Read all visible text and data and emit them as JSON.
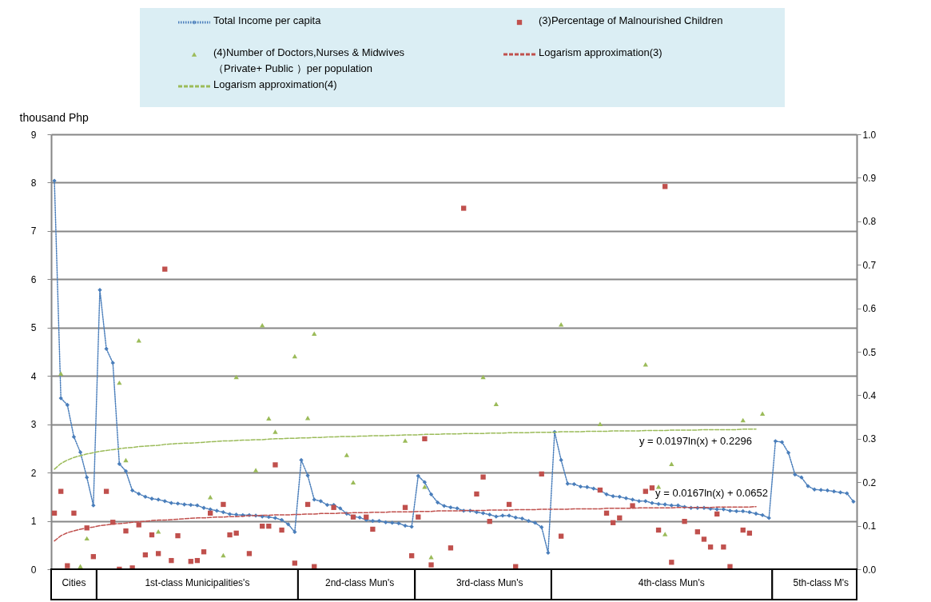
{
  "chart_data": {
    "type": "line",
    "ylabel": "thousand Php",
    "categories": [
      null,
      null,
      null,
      "Cities",
      null,
      null,
      null,
      null,
      null,
      null,
      null,
      null,
      null,
      null,
      null,
      null,
      null,
      null,
      null,
      null,
      null,
      null,
      "1st-class Municipalities's",
      null,
      null,
      null,
      null,
      null,
      null,
      null,
      null,
      null,
      null,
      null,
      null,
      null,
      null,
      null,
      null,
      null,
      null,
      null,
      null,
      null,
      null,
      null,
      null,
      "2nd-class Mun's",
      null,
      null,
      null,
      null,
      null,
      null,
      null,
      null,
      null,
      null,
      null,
      null,
      null,
      null,
      null,
      null,
      null,
      null,
      null,
      "3rd-class Mun's",
      null,
      null,
      null,
      null,
      null,
      null,
      null,
      null,
      null,
      null,
      null,
      null,
      null,
      null,
      null,
      null,
      null,
      null,
      null,
      null,
      null,
      null,
      null,
      null,
      null,
      null,
      null,
      "4th-class Mun's",
      null,
      null,
      null,
      null,
      null,
      null,
      null,
      null,
      null,
      null,
      null,
      null,
      null,
      null,
      null,
      null,
      null,
      null,
      null,
      null,
      null,
      null,
      "5th-class M's",
      null,
      null,
      null,
      null,
      null
    ],
    "ylim": [
      0,
      9
    ],
    "yticks": [
      0,
      1,
      2,
      3,
      4,
      5,
      6,
      7,
      8,
      9
    ],
    "y2lim": [
      0,
      1
    ],
    "y2ticks": [
      {
        "value": 0,
        "label": "0.0"
      },
      0.1,
      0.2,
      0.3,
      0.4,
      0.5,
      0.6,
      0.7,
      0.8,
      0.9,
      {
        "value": 1,
        "label": "1.0"
      }
    ],
    "grid": "y",
    "legend": "top",
    "series": [
      {
        "name": "Total Income  per capita",
        "color": "#4a7ebb",
        "marker": "diamond",
        "line_style": "dotted",
        "axis": "y",
        "values": [
          8.04,
          3.54,
          3.4,
          2.74,
          2.42,
          1.9,
          1.32,
          5.78,
          4.56,
          4.27,
          2.18,
          2.03,
          1.63,
          1.56,
          1.5,
          1.46,
          1.44,
          1.41,
          1.37,
          1.36,
          1.34,
          1.33,
          1.32,
          1.27,
          1.24,
          1.21,
          1.18,
          1.14,
          1.13,
          1.12,
          1.12,
          1.11,
          1.09,
          1.08,
          1.06,
          1.02,
          0.93,
          0.77,
          2.26,
          1.94,
          1.44,
          1.41,
          1.33,
          1.33,
          1.26,
          1.15,
          1.09,
          1.07,
          1.02,
          1.0,
          1.0,
          0.97,
          0.96,
          0.95,
          0.9,
          0.88,
          1.93,
          1.8,
          1.55,
          1.38,
          1.31,
          1.28,
          1.26,
          1.21,
          1.21,
          1.18,
          1.16,
          1.13,
          1.09,
          1.11,
          1.11,
          1.07,
          1.05,
          1.0,
          0.96,
          0.87,
          0.34,
          2.84,
          2.26,
          1.77,
          1.76,
          1.71,
          1.7,
          1.67,
          1.63,
          1.55,
          1.51,
          1.5,
          1.47,
          1.44,
          1.41,
          1.41,
          1.37,
          1.35,
          1.34,
          1.32,
          1.32,
          1.29,
          1.27,
          1.27,
          1.27,
          1.25,
          1.24,
          1.24,
          1.21,
          1.2,
          1.2,
          1.18,
          1.15,
          1.12,
          1.06,
          2.65,
          2.63,
          2.41,
          1.96,
          1.9,
          1.72,
          1.65,
          1.64,
          1.63,
          1.61,
          1.59,
          1.57,
          1.4
        ]
      },
      {
        "name": "(3)Percentage of Malnourished Children",
        "type": "scatter",
        "color": "#c0504d",
        "marker": "square",
        "axis": "y2",
        "values": [
          0.129,
          0.179,
          0.008,
          0.129,
          null,
          0.095,
          0.029,
          null,
          0.179,
          0.108,
          0.0,
          0.088,
          0.003,
          0.102,
          0.033,
          0.079,
          0.036,
          0.69,
          0.02,
          0.077,
          null,
          0.018,
          0.02,
          0.04,
          0.129,
          null,
          0.149,
          0.079,
          0.083,
          null,
          0.036,
          null,
          0.099,
          0.099,
          0.24,
          0.09,
          null,
          0.014,
          null,
          0.149,
          0.006,
          null,
          null,
          0.142,
          null,
          null,
          0.12,
          null,
          0.12,
          0.092,
          null,
          null,
          null,
          null,
          0.142,
          0.031,
          0.12,
          0.3,
          0.01,
          null,
          null,
          0.049,
          null,
          0.83,
          null,
          0.173,
          0.212,
          0.11,
          null,
          null,
          0.149,
          0.006,
          null,
          null,
          null,
          0.219,
          null,
          null,
          0.076,
          null,
          null,
          null,
          null,
          null,
          0.182,
          0.129,
          0.107,
          0.118,
          null,
          0.146,
          null,
          0.179,
          0.187,
          0.09,
          0.88,
          0.016,
          null,
          0.11,
          null,
          0.086,
          0.069,
          0.051,
          0.127,
          0.051,
          0.006,
          null,
          0.09,
          0.083,
          null,
          null,
          null,
          null,
          null,
          null,
          null,
          null,
          null,
          null,
          null,
          null,
          null,
          null,
          null,
          null
        ]
      },
      {
        "name": "(4)Number of Doctors,Nurses & Midwives\n（Private+ Public ）per population",
        "type": "scatter",
        "color": "#9bbb59",
        "marker": "triangle",
        "axis": "y2",
        "values": [
          null,
          0.45,
          null,
          null,
          0.007,
          0.071,
          null,
          null,
          null,
          null,
          0.429,
          0.251,
          null,
          0.526,
          null,
          null,
          0.087,
          null,
          null,
          null,
          null,
          null,
          null,
          null,
          0.166,
          null,
          0.032,
          null,
          0.442,
          null,
          null,
          0.228,
          0.561,
          0.347,
          0.316,
          null,
          null,
          0.49,
          null,
          0.348,
          0.542,
          null,
          null,
          null,
          null,
          0.263,
          0.2,
          null,
          null,
          null,
          null,
          null,
          null,
          null,
          0.296,
          null,
          null,
          0.19,
          0.028,
          null,
          null,
          null,
          null,
          null,
          null,
          null,
          0.442,
          null,
          0.38,
          null,
          null,
          null,
          null,
          null,
          null,
          null,
          null,
          null,
          0.563,
          null,
          null,
          null,
          null,
          null,
          0.334,
          null,
          null,
          null,
          null,
          null,
          null,
          0.471,
          null,
          0.19,
          0.081,
          0.242,
          null,
          null,
          null,
          null,
          null,
          null,
          null,
          null,
          null,
          null,
          0.343,
          null,
          null,
          0.358,
          null,
          null,
          null,
          null,
          null,
          null,
          null,
          null,
          null,
          null,
          null,
          null,
          null,
          null
        ]
      },
      {
        "name": "Logarism approximation(3)",
        "type": "line",
        "color": "#c0504d",
        "line_style": "dashed",
        "axis": "y2",
        "values": [
          0.065,
          0.077,
          0.084,
          0.088,
          0.092,
          0.095,
          0.097,
          0.1,
          0.102,
          0.104,
          0.105,
          0.106,
          0.108,
          0.109,
          0.11,
          0.112,
          0.113,
          0.113,
          0.114,
          0.115,
          0.116,
          0.117,
          0.118,
          0.118,
          0.119,
          0.12,
          0.12,
          0.121,
          0.121,
          0.122,
          0.123,
          0.123,
          0.124,
          0.124,
          0.125,
          0.125,
          0.125,
          0.126,
          0.126,
          0.127,
          0.127,
          0.128,
          0.128,
          0.128,
          0.129,
          0.129,
          0.13,
          0.13,
          0.13,
          0.131,
          0.131,
          0.131,
          0.132,
          0.132,
          0.132,
          0.132,
          0.133,
          0.133,
          0.133,
          0.134,
          0.134,
          0.134,
          0.134,
          0.135,
          0.135,
          0.135,
          0.135,
          0.136,
          0.136,
          0.136,
          0.136,
          0.137,
          0.137,
          0.137,
          0.137,
          0.138,
          0.138,
          0.138,
          0.138,
          0.138,
          0.139,
          0.139,
          0.139,
          0.139,
          0.139,
          0.14,
          0.14,
          0.14,
          0.14,
          0.14,
          0.141,
          0.141,
          0.141,
          0.141,
          0.141,
          0.141,
          0.142,
          0.142,
          0.142,
          0.142,
          0.142,
          0.142,
          0.143,
          0.143,
          0.143,
          0.143,
          0.143,
          0.143,
          0.144,
          null,
          null,
          null,
          null,
          null,
          null,
          null,
          null,
          null,
          null,
          null,
          null,
          null,
          null,
          null
        ]
      },
      {
        "name": "Logarism approximation(4)",
        "type": "line",
        "color": "#9bbb59",
        "line_style": "dashed",
        "axis": "y2",
        "values": [
          0.23,
          0.243,
          0.251,
          0.257,
          0.261,
          0.265,
          0.268,
          0.271,
          0.273,
          0.275,
          0.277,
          0.279,
          0.28,
          0.282,
          0.283,
          0.284,
          0.285,
          0.287,
          0.288,
          0.289,
          0.29,
          0.29,
          0.291,
          0.292,
          0.293,
          0.294,
          0.295,
          0.295,
          0.296,
          0.297,
          0.297,
          0.298,
          0.298,
          0.299,
          0.3,
          0.3,
          0.301,
          0.301,
          0.302,
          0.302,
          0.303,
          0.303,
          0.304,
          0.304,
          0.305,
          0.305,
          0.305,
          0.306,
          0.306,
          0.307,
          0.307,
          0.307,
          0.308,
          0.308,
          0.309,
          0.309,
          0.309,
          0.31,
          0.31,
          0.31,
          0.311,
          0.311,
          0.311,
          0.312,
          0.312,
          0.312,
          0.312,
          0.313,
          0.313,
          0.313,
          0.314,
          0.314,
          0.314,
          0.314,
          0.315,
          0.315,
          0.315,
          0.315,
          0.316,
          0.316,
          0.316,
          0.316,
          0.317,
          0.317,
          0.317,
          0.317,
          0.318,
          0.318,
          0.318,
          0.318,
          0.318,
          0.319,
          0.319,
          0.319,
          0.319,
          0.32,
          0.32,
          0.32,
          0.32,
          0.32,
          0.321,
          0.321,
          0.321,
          0.321,
          0.321,
          0.321,
          0.322,
          0.322,
          0.322,
          null,
          null,
          null,
          null,
          null,
          null,
          null,
          null,
          null,
          null,
          null,
          null,
          null,
          null,
          null
        ]
      }
    ],
    "annotations": [
      "y = 0.0197ln(x) + 0.2296",
      "y = 0.0167ln(x) + 0.0652"
    ]
  }
}
